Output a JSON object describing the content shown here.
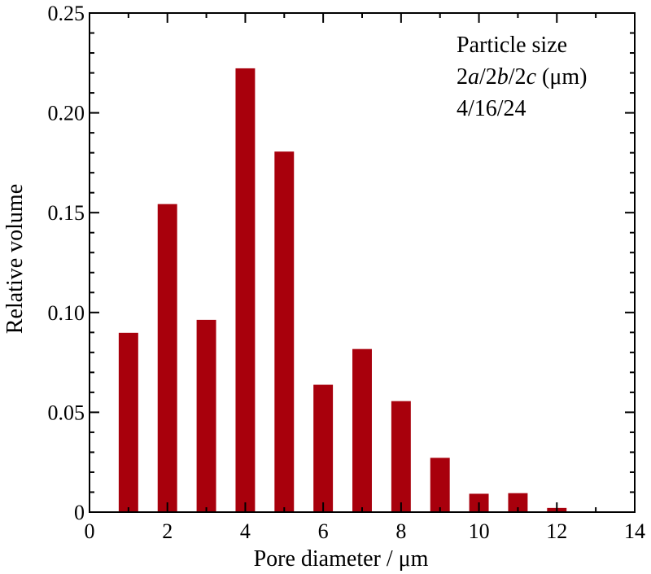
{
  "chart_data": {
    "type": "bar",
    "x": [
      1,
      2,
      3,
      4,
      5,
      6,
      7,
      8,
      9,
      10,
      11,
      12
    ],
    "values": [
      0.0898,
      0.1543,
      0.0963,
      0.2223,
      0.1806,
      0.0638,
      0.0817,
      0.0556,
      0.0272,
      0.0092,
      0.0095,
      0.0021
    ],
    "xlabel": "Pore diameter / μm",
    "ylabel": "Relative volume",
    "xlim": [
      0,
      14
    ],
    "ylim": [
      0,
      0.25
    ],
    "xticks": [
      0,
      2,
      4,
      6,
      8,
      10,
      12,
      14
    ],
    "xtick_labels": [
      "0",
      "2",
      "4",
      "6",
      "8",
      "10",
      "12",
      "14"
    ],
    "yticks": [
      0,
      0.05,
      0.1,
      0.15,
      0.2,
      0.25
    ],
    "ytick_labels": [
      "0",
      "0.05",
      "0.10",
      "0.15",
      "0.20",
      "0.25"
    ],
    "bar_color": "#a8000c",
    "grid": false,
    "legend_placement": "top-right",
    "annotation": {
      "line1": "Particle size",
      "line2_parts": [
        "2",
        "a",
        "/2",
        "b",
        "/2",
        "c",
        " (μm)"
      ],
      "line3": "4/16/24"
    }
  }
}
